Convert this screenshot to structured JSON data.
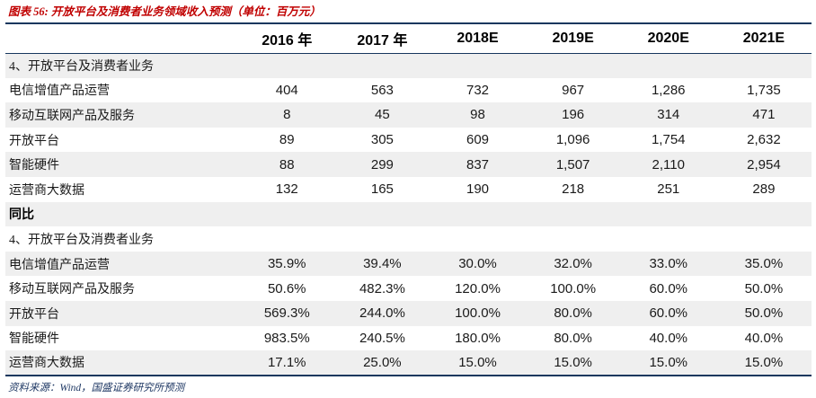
{
  "figure": {
    "title": "图表 56: 开放平台及消费者业务领域收入预测（单位：百万元）",
    "source": "资料来源：Wind，国盛证券研究所预测"
  },
  "table": {
    "header": [
      "",
      "2016 年",
      "2017 年",
      "2018E",
      "2019E",
      "2020E",
      "2021E"
    ],
    "rows": [
      {
        "label": "4、开放平台及消费者业务",
        "style": "section",
        "values": [
          "",
          "",
          "",
          "",
          "",
          ""
        ]
      },
      {
        "label": "电信增值产品运营",
        "style": "data",
        "values": [
          "404",
          "563",
          "732",
          "967",
          "1,286",
          "1,735"
        ]
      },
      {
        "label": "移动互联网产品及服务",
        "style": "data",
        "values": [
          "8",
          "45",
          "98",
          "196",
          "314",
          "471"
        ]
      },
      {
        "label": "开放平台",
        "style": "data",
        "values": [
          "89",
          "305",
          "609",
          "1,096",
          "1,754",
          "2,632"
        ]
      },
      {
        "label": "智能硬件",
        "style": "data",
        "values": [
          "88",
          "299",
          "837",
          "1,507",
          "2,110",
          "2,954"
        ]
      },
      {
        "label": "运营商大数据",
        "style": "data",
        "values": [
          "132",
          "165",
          "190",
          "218",
          "251",
          "289"
        ]
      },
      {
        "label": "同比",
        "style": "bold-section",
        "values": [
          "",
          "",
          "",
          "",
          "",
          ""
        ]
      },
      {
        "label": "4、开放平台及消费者业务",
        "style": "section",
        "values": [
          "",
          "",
          "",
          "",
          "",
          ""
        ]
      },
      {
        "label": "电信增值产品运营",
        "style": "data",
        "values": [
          "35.9%",
          "39.4%",
          "30.0%",
          "32.0%",
          "33.0%",
          "35.0%"
        ]
      },
      {
        "label": "移动互联网产品及服务",
        "style": "data",
        "values": [
          "50.6%",
          "482.3%",
          "120.0%",
          "100.0%",
          "60.0%",
          "50.0%"
        ]
      },
      {
        "label": "开放平台",
        "style": "data",
        "values": [
          "569.3%",
          "244.0%",
          "100.0%",
          "80.0%",
          "60.0%",
          "50.0%"
        ]
      },
      {
        "label": "智能硬件",
        "style": "data",
        "values": [
          "983.5%",
          "240.5%",
          "180.0%",
          "80.0%",
          "40.0%",
          "40.0%"
        ]
      },
      {
        "label": "运营商大数据",
        "style": "data",
        "values": [
          "17.1%",
          "25.0%",
          "15.0%",
          "15.0%",
          "15.0%",
          "15.0%"
        ]
      }
    ]
  },
  "colors": {
    "title_red": "#C00000",
    "rule_navy": "#17375E",
    "source_navy": "#1F3864",
    "stripe_gray": "#EFEFEF",
    "text": "#1A1A1A"
  }
}
